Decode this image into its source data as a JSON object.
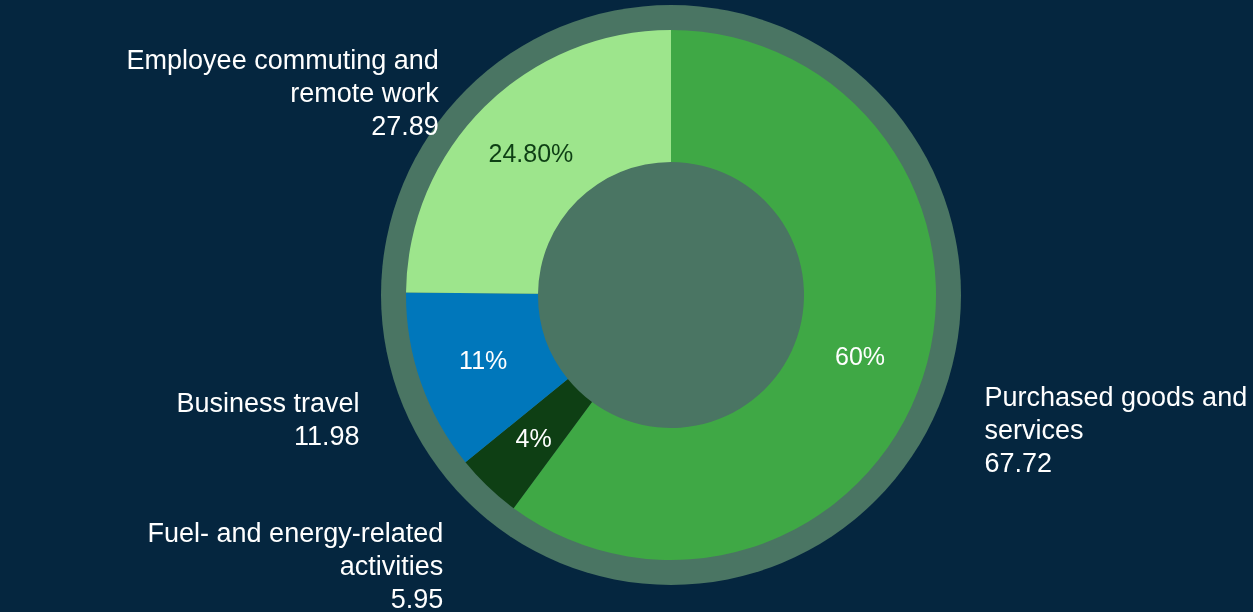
{
  "chart_data": {
    "type": "donut",
    "categories": [
      "Purchased goods and services",
      "Fuel- and energy-related activities",
      "Business travel",
      "Employee commuting and remote work"
    ],
    "values": [
      60,
      4,
      11,
      24.8
    ],
    "colors": [
      "#3fa845",
      "#0e3f14",
      "#0077bb",
      "#9de58c"
    ],
    "value_labels": [
      "60%",
      "4%",
      "11%",
      "24.80%"
    ],
    "annotations": [
      {
        "text": "67.72",
        "x": "Purchased goods and services"
      },
      {
        "text": "5.95",
        "x": "Fuel- and energy-related activities"
      },
      {
        "text": "11.98",
        "x": "Business travel"
      },
      {
        "text": "27.89",
        "x": "Employee commuting and remote work"
      }
    ]
  }
}
